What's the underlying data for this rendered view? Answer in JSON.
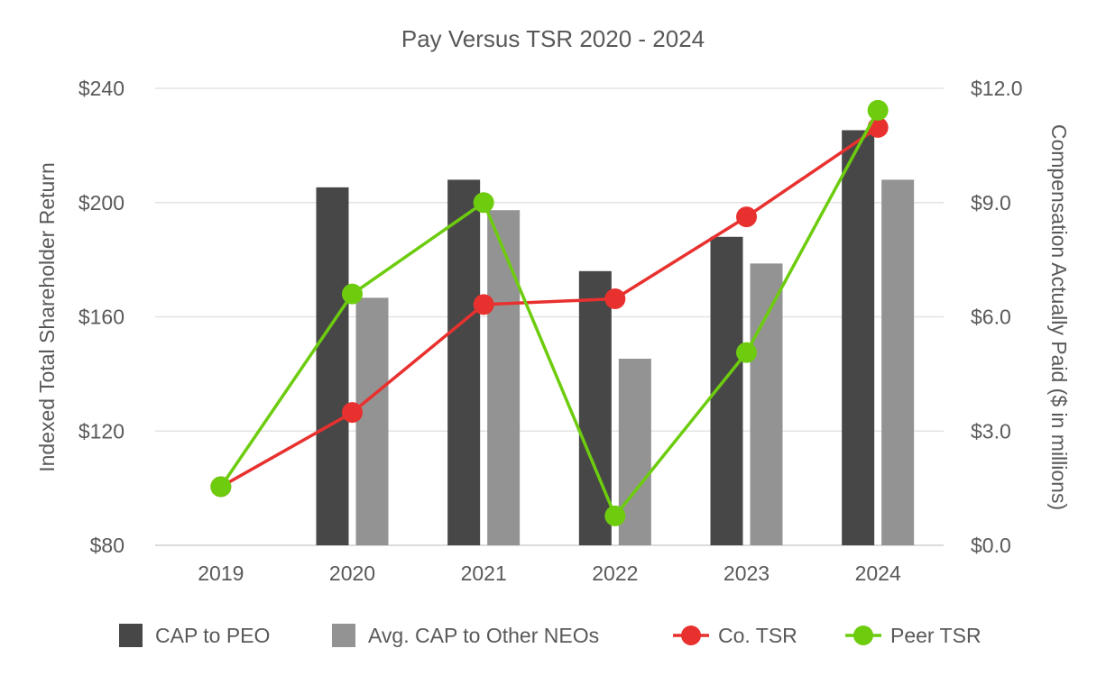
{
  "chart_data": {
    "type": "bar+line",
    "title": "Pay Versus TSR 2020 - 2024",
    "categories": [
      "2019",
      "2020",
      "2021",
      "2022",
      "2023",
      "2024"
    ],
    "left_axis": {
      "label": "Indexed Total Shareholder Return",
      "range": [
        80,
        240
      ],
      "ticks": [
        80,
        120,
        160,
        200,
        240
      ],
      "tick_labels": [
        "$80",
        "$120",
        "$160",
        "$200",
        "$240"
      ]
    },
    "right_axis": {
      "label": "Compensation Actually Paid ($ in millions)",
      "range": [
        0,
        12
      ],
      "ticks": [
        0,
        3,
        6,
        9,
        12
      ],
      "tick_labels": [
        "$0.0",
        "$3.0",
        "$6.0",
        "$9.0",
        "$12.0"
      ]
    },
    "bar_series": [
      {
        "name": "CAP to PEO",
        "axis": "right",
        "color": "#474747",
        "values": [
          null,
          9.4,
          9.6,
          7.2,
          8.1,
          10.9
        ]
      },
      {
        "name": "Avg. CAP to Other NEOs",
        "axis": "right",
        "color": "#939393",
        "values": [
          null,
          6.5,
          8.8,
          4.9,
          7.4,
          9.6
        ]
      }
    ],
    "line_series": [
      {
        "name": "Co. TSR",
        "axis": "left",
        "color": "#e8312f",
        "values": [
          100.5,
          126.5,
          164.3,
          166.3,
          195.0,
          226.3
        ]
      },
      {
        "name": "Peer TSR",
        "axis": "left",
        "color": "#6dcc0e",
        "values": [
          100.5,
          168.0,
          200.0,
          90.3,
          147.5,
          232.3
        ]
      }
    ],
    "legend": [
      {
        "label": "CAP to PEO",
        "kind": "bar",
        "color": "#474747"
      },
      {
        "label": "Avg. CAP to Other NEOs",
        "kind": "bar",
        "color": "#939393"
      },
      {
        "label": "Co. TSR",
        "kind": "line",
        "color": "#e8312f"
      },
      {
        "label": "Peer TSR",
        "kind": "line",
        "color": "#6dcc0e"
      }
    ],
    "legend_position": "bottom",
    "grid": true
  }
}
